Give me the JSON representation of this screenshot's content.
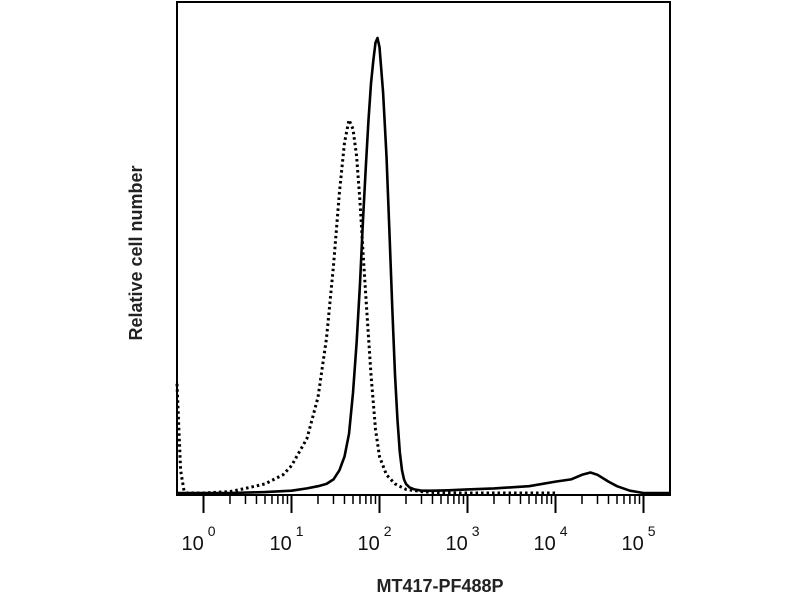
{
  "chart_data": {
    "type": "line",
    "x_scale": "log",
    "xlim": [
      0.5,
      200000
    ],
    "ylim": [
      0,
      1
    ],
    "grid": false,
    "legend": "none",
    "xlabel": "MT417-PF488P",
    "ylabel": "Relative cell number",
    "xticks": [
      {
        "value": 1,
        "base": "10",
        "exp": "0"
      },
      {
        "value": 10,
        "base": "10",
        "exp": "1"
      },
      {
        "value": 100,
        "base": "10",
        "exp": "2"
      },
      {
        "value": 1000,
        "base": "10",
        "exp": "3"
      },
      {
        "value": 10000,
        "base": "10",
        "exp": "4"
      },
      {
        "value": 100000,
        "base": "10",
        "exp": "5"
      }
    ],
    "series": [
      {
        "style": "solid",
        "color": "#000000",
        "x": [
          0.5,
          2,
          5,
          10,
          15,
          20,
          25,
          30,
          35,
          40,
          45,
          50,
          55,
          60,
          65,
          70,
          75,
          80,
          85,
          90,
          95,
          100,
          110,
          120,
          130,
          140,
          150,
          160,
          170,
          180,
          190,
          200,
          220,
          250,
          300,
          400,
          600,
          1000,
          2000,
          5000,
          10000,
          15000,
          20000,
          25000,
          30000,
          40000,
          50000,
          70000,
          100000,
          200000
        ],
        "y": [
          0,
          0,
          0.002,
          0.005,
          0.01,
          0.015,
          0.02,
          0.03,
          0.05,
          0.08,
          0.13,
          0.22,
          0.33,
          0.46,
          0.6,
          0.72,
          0.82,
          0.9,
          0.95,
          0.99,
          1.0,
          0.98,
          0.88,
          0.74,
          0.57,
          0.4,
          0.26,
          0.16,
          0.09,
          0.05,
          0.03,
          0.02,
          0.012,
          0.008,
          0.005,
          0.005,
          0.006,
          0.008,
          0.01,
          0.015,
          0.025,
          0.03,
          0.04,
          0.045,
          0.04,
          0.025,
          0.015,
          0.005,
          0,
          0
        ]
      },
      {
        "style": "dotted",
        "color": "#000000",
        "x": [
          0.5,
          0.55,
          0.6,
          0.65,
          0.7,
          1,
          2,
          3,
          5,
          8,
          10,
          15,
          20,
          25,
          30,
          35,
          40,
          45,
          50,
          55,
          60,
          65,
          70,
          80,
          90,
          100,
          120,
          150,
          200,
          300,
          500,
          1000,
          3000,
          10000
        ],
        "y": [
          0.24,
          0.05,
          0.005,
          0,
          0,
          0,
          0.003,
          0.01,
          0.02,
          0.04,
          0.06,
          0.12,
          0.21,
          0.34,
          0.5,
          0.66,
          0.77,
          0.82,
          0.8,
          0.74,
          0.64,
          0.53,
          0.43,
          0.26,
          0.14,
          0.08,
          0.04,
          0.02,
          0.008,
          0.003,
          0,
          0,
          0,
          0
        ]
      }
    ]
  }
}
